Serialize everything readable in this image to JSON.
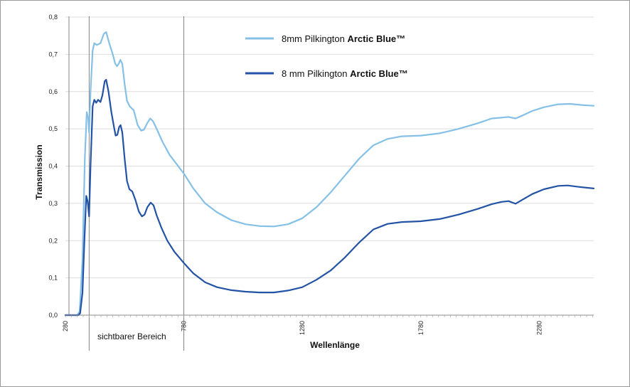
{
  "chart_data": {
    "type": "line",
    "xlabel": "Wellenlänge",
    "ylabel": "Transmission",
    "xlim": [
      280,
      2510
    ],
    "ylim": [
      0,
      0.8
    ],
    "x_ticks": [
      280,
      780,
      1280,
      1780,
      2280
    ],
    "y_ticks": [
      "0,0",
      "0,1",
      "0,2",
      "0,3",
      "0,4",
      "0,5",
      "0,6",
      "0,7",
      "0,8"
    ],
    "grid": "horizontal",
    "legend_position": "top-center",
    "annotation": {
      "label": "sichtbarer Bereich",
      "x_lines": [
        295,
        380,
        780
      ]
    },
    "series": [
      {
        "name_prefix": "8mm Pilkington ",
        "name_bold": "Arctic Blue™",
        "color": "#85c0e6",
        "points": [
          [
            280,
            0.0
          ],
          [
            330,
            0.0
          ],
          [
            340,
            0.01
          ],
          [
            352,
            0.15
          ],
          [
            362,
            0.42
          ],
          [
            370,
            0.545
          ],
          [
            376,
            0.53
          ],
          [
            380,
            0.49
          ],
          [
            386,
            0.6
          ],
          [
            395,
            0.71
          ],
          [
            402,
            0.73
          ],
          [
            412,
            0.725
          ],
          [
            428,
            0.73
          ],
          [
            442,
            0.755
          ],
          [
            452,
            0.76
          ],
          [
            465,
            0.73
          ],
          [
            480,
            0.7
          ],
          [
            490,
            0.675
          ],
          [
            498,
            0.668
          ],
          [
            505,
            0.675
          ],
          [
            512,
            0.685
          ],
          [
            520,
            0.675
          ],
          [
            530,
            0.62
          ],
          [
            540,
            0.575
          ],
          [
            552,
            0.56
          ],
          [
            568,
            0.55
          ],
          [
            585,
            0.51
          ],
          [
            600,
            0.495
          ],
          [
            612,
            0.498
          ],
          [
            625,
            0.515
          ],
          [
            638,
            0.528
          ],
          [
            650,
            0.52
          ],
          [
            665,
            0.5
          ],
          [
            690,
            0.465
          ],
          [
            720,
            0.43
          ],
          [
            750,
            0.405
          ],
          [
            780,
            0.38
          ],
          [
            820,
            0.34
          ],
          [
            870,
            0.3
          ],
          [
            920,
            0.276
          ],
          [
            980,
            0.255
          ],
          [
            1040,
            0.244
          ],
          [
            1100,
            0.239
          ],
          [
            1160,
            0.238
          ],
          [
            1220,
            0.244
          ],
          [
            1280,
            0.26
          ],
          [
            1340,
            0.29
          ],
          [
            1400,
            0.33
          ],
          [
            1460,
            0.375
          ],
          [
            1520,
            0.42
          ],
          [
            1580,
            0.456
          ],
          [
            1640,
            0.473
          ],
          [
            1700,
            0.48
          ],
          [
            1780,
            0.482
          ],
          [
            1860,
            0.488
          ],
          [
            1940,
            0.5
          ],
          [
            2020,
            0.515
          ],
          [
            2080,
            0.528
          ],
          [
            2120,
            0.53
          ],
          [
            2150,
            0.532
          ],
          [
            2180,
            0.528
          ],
          [
            2210,
            0.536
          ],
          [
            2250,
            0.548
          ],
          [
            2300,
            0.558
          ],
          [
            2360,
            0.566
          ],
          [
            2410,
            0.567
          ],
          [
            2460,
            0.564
          ],
          [
            2510,
            0.562
          ]
        ]
      },
      {
        "name_prefix": "8 mm Pilkington ",
        "name_bold": "Arctic Blue™",
        "color": "#2353a4",
        "points": [
          [
            280,
            0.0
          ],
          [
            335,
            0.0
          ],
          [
            342,
            0.005
          ],
          [
            352,
            0.06
          ],
          [
            360,
            0.2
          ],
          [
            368,
            0.32
          ],
          [
            374,
            0.305
          ],
          [
            380,
            0.265
          ],
          [
            386,
            0.4
          ],
          [
            395,
            0.56
          ],
          [
            402,
            0.578
          ],
          [
            410,
            0.57
          ],
          [
            418,
            0.578
          ],
          [
            428,
            0.572
          ],
          [
            436,
            0.59
          ],
          [
            446,
            0.628
          ],
          [
            452,
            0.632
          ],
          [
            462,
            0.6
          ],
          [
            474,
            0.545
          ],
          [
            485,
            0.505
          ],
          [
            492,
            0.482
          ],
          [
            499,
            0.484
          ],
          [
            507,
            0.505
          ],
          [
            513,
            0.51
          ],
          [
            520,
            0.49
          ],
          [
            530,
            0.42
          ],
          [
            540,
            0.36
          ],
          [
            550,
            0.338
          ],
          [
            562,
            0.332
          ],
          [
            575,
            0.31
          ],
          [
            590,
            0.278
          ],
          [
            603,
            0.265
          ],
          [
            614,
            0.27
          ],
          [
            626,
            0.29
          ],
          [
            640,
            0.302
          ],
          [
            652,
            0.295
          ],
          [
            665,
            0.268
          ],
          [
            685,
            0.235
          ],
          [
            710,
            0.2
          ],
          [
            740,
            0.17
          ],
          [
            780,
            0.14
          ],
          [
            820,
            0.112
          ],
          [
            870,
            0.088
          ],
          [
            920,
            0.075
          ],
          [
            980,
            0.067
          ],
          [
            1040,
            0.063
          ],
          [
            1100,
            0.061
          ],
          [
            1160,
            0.061
          ],
          [
            1220,
            0.066
          ],
          [
            1280,
            0.075
          ],
          [
            1340,
            0.095
          ],
          [
            1400,
            0.12
          ],
          [
            1460,
            0.155
          ],
          [
            1520,
            0.195
          ],
          [
            1580,
            0.23
          ],
          [
            1640,
            0.245
          ],
          [
            1700,
            0.25
          ],
          [
            1780,
            0.252
          ],
          [
            1860,
            0.258
          ],
          [
            1940,
            0.27
          ],
          [
            2020,
            0.285
          ],
          [
            2080,
            0.298
          ],
          [
            2120,
            0.304
          ],
          [
            2150,
            0.306
          ],
          [
            2180,
            0.299
          ],
          [
            2210,
            0.31
          ],
          [
            2250,
            0.325
          ],
          [
            2300,
            0.338
          ],
          [
            2360,
            0.347
          ],
          [
            2400,
            0.348
          ],
          [
            2450,
            0.344
          ],
          [
            2510,
            0.34
          ]
        ]
      }
    ]
  }
}
